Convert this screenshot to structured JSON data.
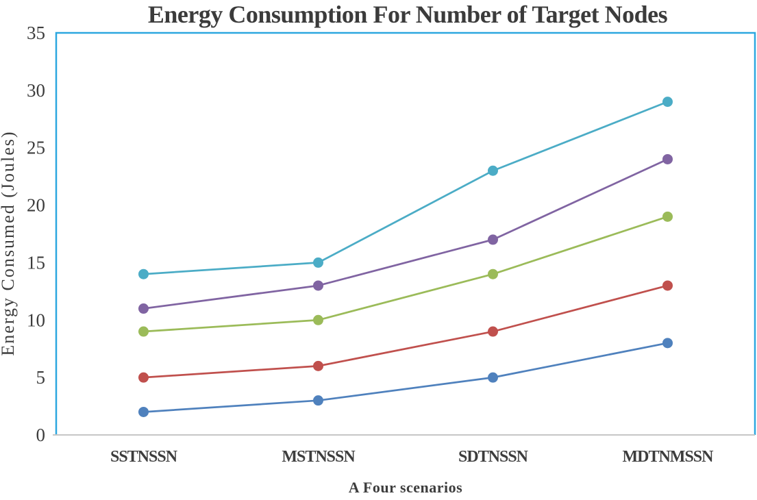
{
  "chart_data": {
    "type": "line",
    "title": "Energy Consumption For Number of Target Nodes",
    "xlabel": "A Four scenarios",
    "ylabel": "Energy Consumed (Joules)",
    "categories": [
      "SSTNSSN",
      "MSTNSSN",
      "SDTNSSN",
      "MDTNMSSN"
    ],
    "series": [
      {
        "name": "blue-series",
        "color": "#4F81BD",
        "values": [
          2,
          3,
          5,
          8
        ]
      },
      {
        "name": "red-series",
        "color": "#C0504D",
        "values": [
          5,
          6,
          9,
          13
        ]
      },
      {
        "name": "green-series",
        "color": "#9BBB59",
        "values": [
          9,
          10,
          14,
          19
        ]
      },
      {
        "name": "purple-series",
        "color": "#8064A2",
        "values": [
          11,
          13,
          17,
          24
        ]
      },
      {
        "name": "cyan-series",
        "color": "#4BACC6",
        "values": [
          14,
          15,
          23,
          29
        ]
      }
    ],
    "ylim": [
      0,
      35
    ],
    "ytick_step": 5,
    "yticks": [
      0,
      5,
      10,
      15,
      20,
      25,
      30,
      35
    ],
    "grid": false,
    "legend": "none",
    "marker": "circle",
    "plot_border_color": "#2BA7DF",
    "axis_line_color": "#C6C6C6",
    "text_color": "#3D3D3D",
    "title_color": "#3B3B3B"
  }
}
